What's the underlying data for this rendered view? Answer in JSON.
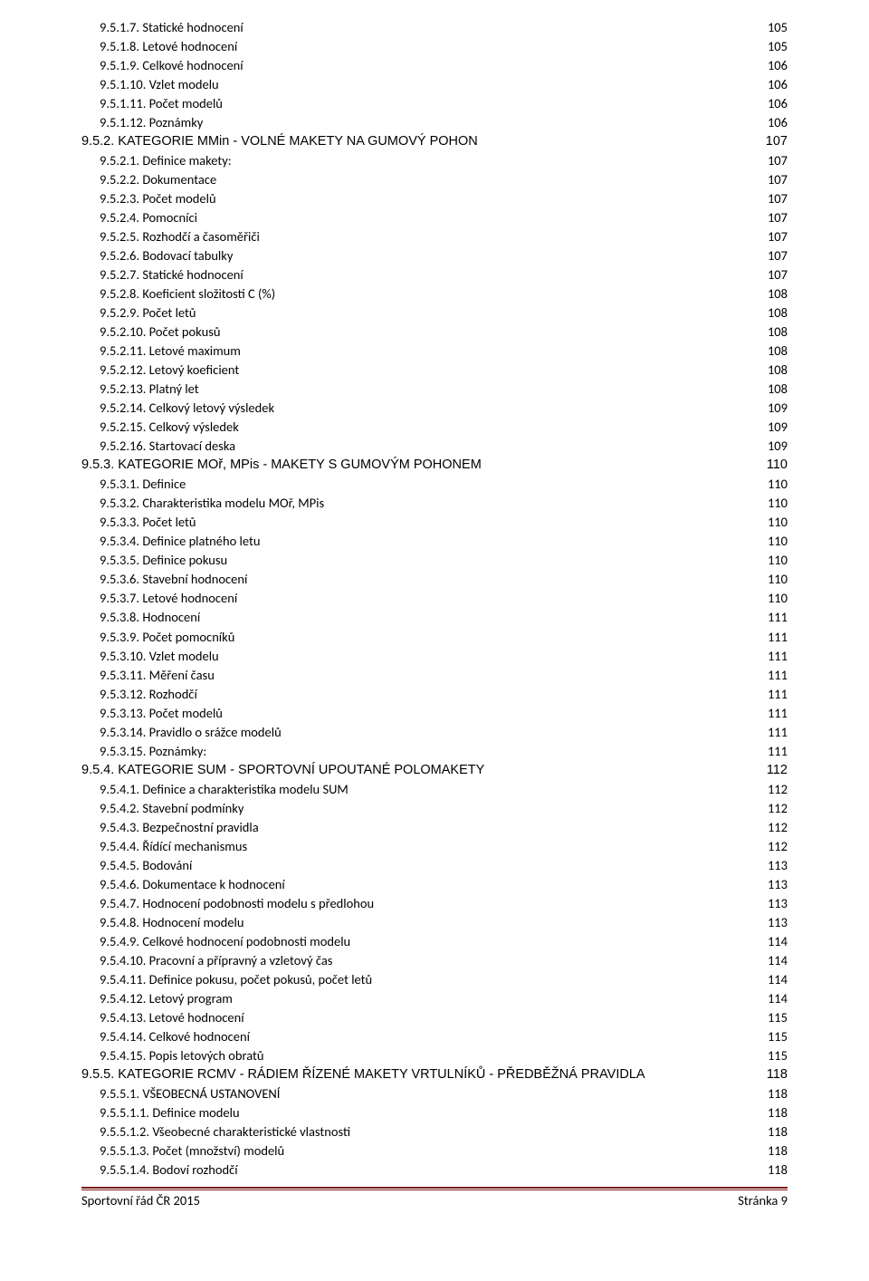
{
  "toc": [
    {
      "indent": 1,
      "label": "9.5.1.7. Statické hodnocení",
      "page": "105"
    },
    {
      "indent": 1,
      "label": "9.5.1.8. Letové hodnocení",
      "page": "105"
    },
    {
      "indent": 1,
      "label": "9.5.1.9. Celkové hodnocení",
      "page": "106"
    },
    {
      "indent": 1,
      "label": "9.5.1.10. Vzlet modelu",
      "page": "106"
    },
    {
      "indent": 1,
      "label": "9.5.1.11. Počet modelů",
      "page": "106"
    },
    {
      "indent": 1,
      "label": "9.5.1.12. Poznámky",
      "page": "106"
    },
    {
      "indent": 0,
      "section": true,
      "label": "9.5.2.    KATEGORIE MMin - VOLNÉ MAKETY NA GUMOVÝ POHON",
      "page": "107"
    },
    {
      "indent": 1,
      "label": "9.5.2.1. Definice makety:",
      "page": "107"
    },
    {
      "indent": 1,
      "label": "9.5.2.2. Dokumentace",
      "page": "107"
    },
    {
      "indent": 1,
      "label": "9.5.2.3. Počet modelů",
      "page": "107"
    },
    {
      "indent": 1,
      "label": "9.5.2.4. Pomocníci",
      "page": "107"
    },
    {
      "indent": 1,
      "label": "9.5.2.5. Rozhodčí a časoměřiči",
      "page": "107"
    },
    {
      "indent": 1,
      "label": "9.5.2.6. Bodovací tabulky",
      "page": "107"
    },
    {
      "indent": 1,
      "label": "9.5.2.7. Statické hodnocení",
      "page": "107"
    },
    {
      "indent": 1,
      "label": "9.5.2.8. Koeficient složitosti C (%)",
      "page": "108"
    },
    {
      "indent": 1,
      "label": "9.5.2.9. Počet letů",
      "page": "108"
    },
    {
      "indent": 1,
      "label": "9.5.2.10. Počet pokusů",
      "page": "108"
    },
    {
      "indent": 1,
      "label": "9.5.2.11. Letové maximum",
      "page": "108"
    },
    {
      "indent": 1,
      "label": "9.5.2.12. Letový koeficient",
      "page": "108"
    },
    {
      "indent": 1,
      "label": "9.5.2.13. Platný let",
      "page": "108"
    },
    {
      "indent": 1,
      "label": "9.5.2.14. Celkový letový výsledek",
      "page": "109"
    },
    {
      "indent": 1,
      "label": "9.5.2.15. Celkový výsledek",
      "page": "109"
    },
    {
      "indent": 1,
      "label": "9.5.2.16. Startovací deska",
      "page": "109"
    },
    {
      "indent": 0,
      "section": true,
      "label": "9.5.3. KATEGORIE MOř, MPis - MAKETY S GUMOVÝM POHONEM",
      "page": "110"
    },
    {
      "indent": 1,
      "label": "9.5.3.1. Definice",
      "page": "110"
    },
    {
      "indent": 1,
      "label": "9.5.3.2. Charakteristika modelu MOř, MPis",
      "page": "110"
    },
    {
      "indent": 1,
      "label": "9.5.3.3. Počet letů",
      "page": "110"
    },
    {
      "indent": 1,
      "label": "9.5.3.4. Definice platného letu",
      "page": "110"
    },
    {
      "indent": 1,
      "label": "9.5.3.5. Definice pokusu",
      "page": "110"
    },
    {
      "indent": 1,
      "label": "9.5.3.6. Stavební hodnocení",
      "page": "110"
    },
    {
      "indent": 1,
      "label": "9.5.3.7. Letové hodnocení",
      "page": "110"
    },
    {
      "indent": 1,
      "label": "9.5.3.8. Hodnocení",
      "page": "111"
    },
    {
      "indent": 1,
      "label": "9.5.3.9. Počet pomocníků",
      "page": "111"
    },
    {
      "indent": 1,
      "label": "9.5.3.10. Vzlet modelu",
      "page": "111"
    },
    {
      "indent": 1,
      "label": "9.5.3.11. Měření času",
      "page": "111"
    },
    {
      "indent": 1,
      "label": "9.5.3.12. Rozhodčí",
      "page": "111"
    },
    {
      "indent": 1,
      "label": "9.5.3.13. Počet modelů",
      "page": "111"
    },
    {
      "indent": 1,
      "label": "9.5.3.14. Pravidlo o srážce modelů",
      "page": "111"
    },
    {
      "indent": 1,
      "label": "9.5.3.15. Poznámky:",
      "page": "111"
    },
    {
      "indent": 0,
      "section": true,
      "label": "9.5.4. KATEGORIE SUM - SPORTOVNÍ UPOUTANÉ POLOMAKETY",
      "page": "112"
    },
    {
      "indent": 1,
      "label": "9.5.4.1. Definice a charakteristika modelu SUM",
      "page": "112"
    },
    {
      "indent": 1,
      "label": "9.5.4.2. Stavební podmínky",
      "page": "112"
    },
    {
      "indent": 1,
      "label": "9.5.4.3. Bezpečnostní pravidla",
      "page": "112"
    },
    {
      "indent": 1,
      "label": "9.5.4.4. Řídící mechanismus",
      "page": "112"
    },
    {
      "indent": 1,
      "label": "9.5.4.5. Bodování",
      "page": "113"
    },
    {
      "indent": 1,
      "label": "9.5.4.6. Dokumentace k hodnocení",
      "page": "113"
    },
    {
      "indent": 1,
      "label": "9.5.4.7. Hodnocení podobnosti modelu s předlohou",
      "page": "113"
    },
    {
      "indent": 1,
      "label": "9.5.4.8. Hodnocení modelu",
      "page": "113"
    },
    {
      "indent": 1,
      "label": "9.5.4.9. Celkové hodnocení podobnosti modelu",
      "page": "114"
    },
    {
      "indent": 1,
      "label": "9.5.4.10. Pracovní a přípravný a vzletový čas",
      "page": "114"
    },
    {
      "indent": 1,
      "label": "9.5.4.11. Definice pokusu, počet pokusů, počet letů",
      "page": "114"
    },
    {
      "indent": 1,
      "label": "9.5.4.12. Letový program",
      "page": "114"
    },
    {
      "indent": 1,
      "label": "9.5.4.13. Letové hodnocení",
      "page": "115"
    },
    {
      "indent": 1,
      "label": "9.5.4.14. Celkové hodnocení",
      "page": "115"
    },
    {
      "indent": 1,
      "label": "9.5.4.15. Popis letových obratů",
      "page": "115"
    },
    {
      "indent": 0,
      "section": true,
      "label": "9.5.5. KATEGORIE RCMV - RÁDIEM ŘÍZENÉ MAKETY VRTULNÍKŮ - PŘEDBĚŽNÁ PRAVIDLA",
      "page": "118"
    },
    {
      "indent": 1,
      "label": "9.5.5.1. VŠEOBECNÁ USTANOVENÍ",
      "page": "118"
    },
    {
      "indent": 1,
      "label": "9.5.5.1.1. Definice modelu",
      "page": "118"
    },
    {
      "indent": 1,
      "label": "9.5.5.1.2. Všeobecné charakteristické vlastnosti",
      "page": "118"
    },
    {
      "indent": 1,
      "label": "9.5.5.1.3. Počet (množství) modelů",
      "page": "118"
    },
    {
      "indent": 1,
      "label": "9.5.5.1.4. Bodoví rozhodčí",
      "page": "118"
    }
  ],
  "footer": {
    "left": "Sportovní řád ČR 2015",
    "right": "Stránka 9"
  }
}
